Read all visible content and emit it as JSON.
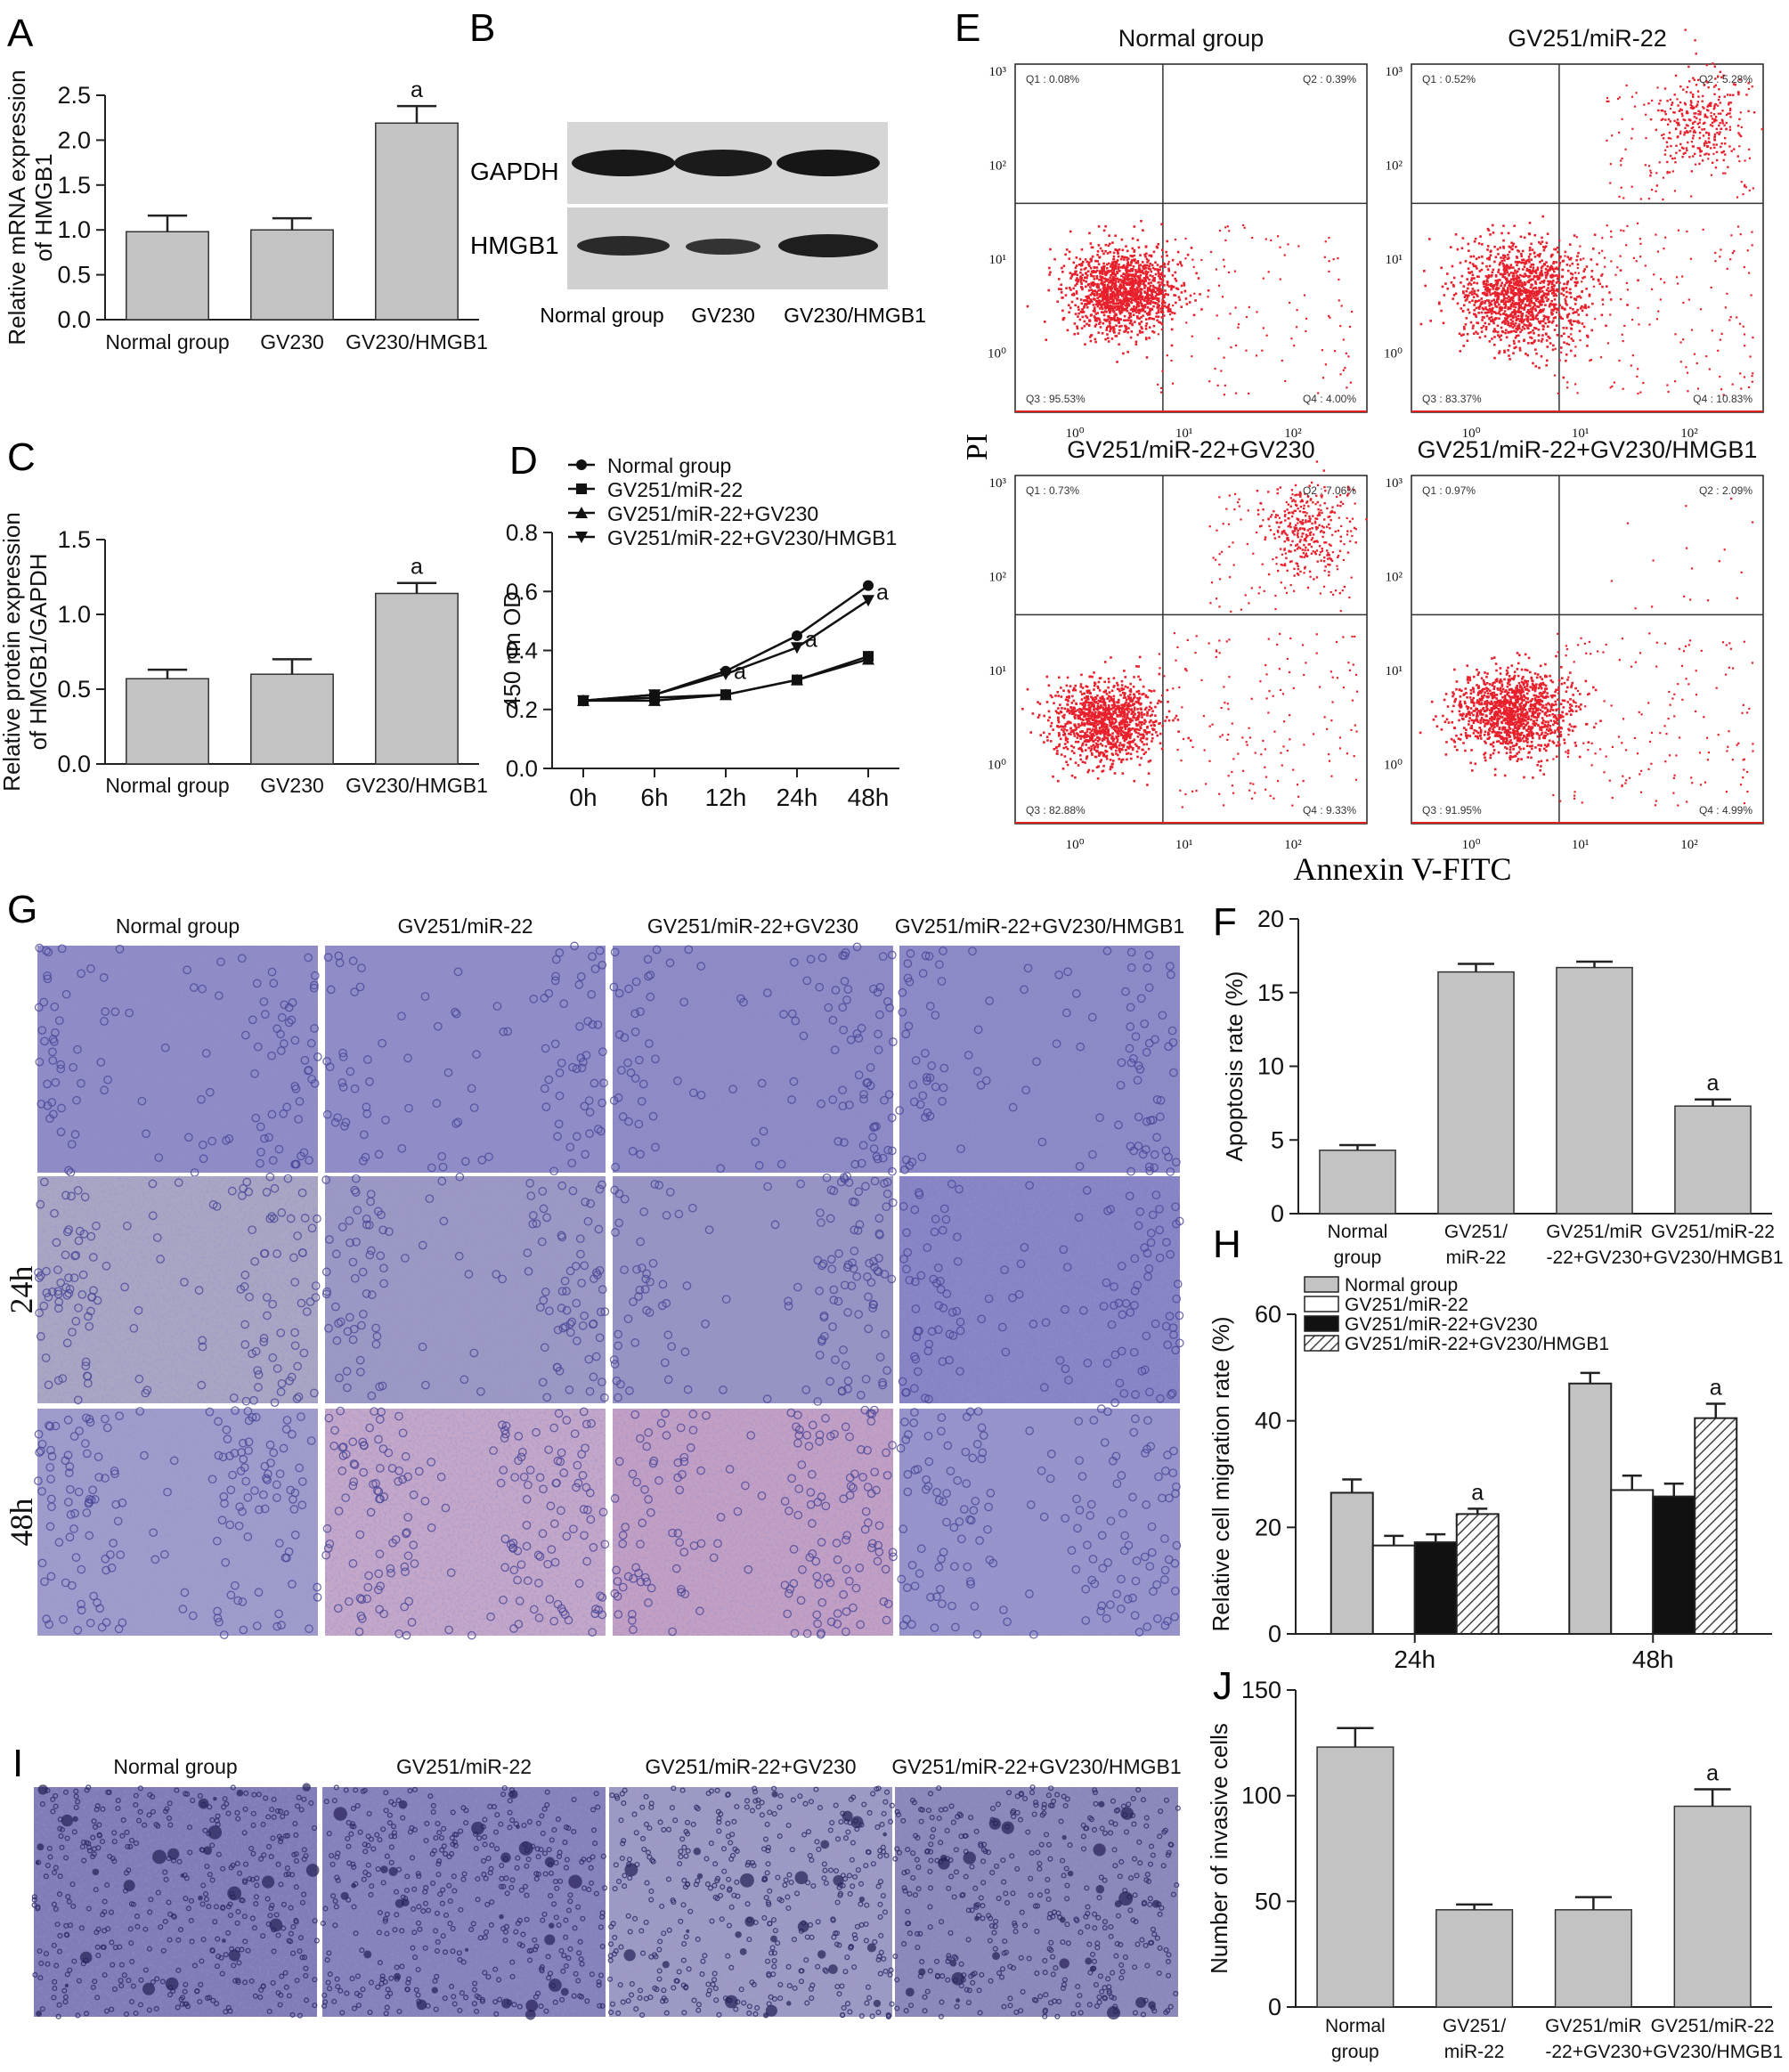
{
  "panel_letters": {
    "A": "A",
    "B": "B",
    "C": "C",
    "D": "D",
    "E": "E",
    "F": "F",
    "G": "G",
    "H": "H",
    "I": "I",
    "J": "J"
  },
  "sig_mark": "a",
  "colors": {
    "bar": "#c3c3c3",
    "axis": "#222222",
    "dot": "#e8202c",
    "micrograph": "#8f8cc4",
    "invasion": "#8b88b8"
  },
  "chart_data": [
    {
      "panel": "A",
      "type": "bar",
      "ylabel": "Relative mRNA expression of HMGB1",
      "categories": [
        "Normal group",
        "GV230",
        "GV230/HMGB1"
      ],
      "values": [
        0.98,
        1.0,
        2.19
      ],
      "errors": [
        0.18,
        0.13,
        0.19
      ],
      "significant": [
        false,
        false,
        true
      ],
      "ylim": [
        0,
        2.5
      ],
      "yticks": [
        "0.0",
        "0.5",
        "1.0",
        "1.5",
        "2.0",
        "2.5"
      ]
    },
    {
      "panel": "C",
      "type": "bar",
      "ylabel": "Relative protein expression of HMGB1/GAPDH",
      "categories": [
        "Normal group",
        "GV230",
        "GV230/HMGB1"
      ],
      "values": [
        0.57,
        0.6,
        1.14
      ],
      "errors": [
        0.06,
        0.1,
        0.07
      ],
      "significant": [
        false,
        false,
        true
      ],
      "ylim": [
        0,
        1.5
      ],
      "yticks": [
        "0.0",
        "0.5",
        "1.0",
        "1.5"
      ]
    },
    {
      "panel": "D",
      "type": "line",
      "ylabel": "450 nm OD",
      "categories": [
        "0h",
        "6h",
        "12h",
        "24h",
        "48h"
      ],
      "ylim": [
        0,
        0.8
      ],
      "yticks": [
        "0.0",
        "0.2",
        "0.4",
        "0.6",
        "0.8"
      ],
      "series": [
        {
          "name": "Normal group",
          "marker": "circle",
          "values": [
            0.23,
            0.25,
            0.33,
            0.45,
            0.62
          ]
        },
        {
          "name": "GV251/miR-22",
          "marker": "square",
          "values": [
            0.23,
            0.24,
            0.25,
            0.3,
            0.38
          ]
        },
        {
          "name": "GV251/miR-22+GV230",
          "marker": "triangle-up",
          "values": [
            0.23,
            0.23,
            0.25,
            0.3,
            0.37
          ]
        },
        {
          "name": "GV251/miR-22+GV230/HMGB1",
          "marker": "triangle-down",
          "values": [
            0.23,
            0.25,
            0.32,
            0.41,
            0.57
          ]
        }
      ],
      "significant_labels": [
        {
          "category": "12h",
          "value": 0.33
        },
        {
          "category": "24h",
          "value": 0.44
        },
        {
          "category": "48h",
          "value": 0.6
        }
      ]
    },
    {
      "panel": "F",
      "type": "bar",
      "ylabel": "Apoptosis rate (%)",
      "categories": [
        [
          "Normal",
          "group"
        ],
        [
          "GV251/",
          "miR-22"
        ],
        [
          "GV251/miR",
          "-22+GV230"
        ],
        [
          "GV251/miR-22",
          "+GV230/HMGB1"
        ]
      ],
      "values": [
        4.3,
        16.4,
        16.7,
        7.3
      ],
      "errors": [
        0.35,
        0.55,
        0.4,
        0.45
      ],
      "significant": [
        false,
        false,
        false,
        true
      ],
      "ylim": [
        0,
        20
      ],
      "yticks": [
        "0",
        "5",
        "10",
        "15",
        "20"
      ]
    },
    {
      "panel": "H",
      "type": "bar",
      "ylabel": "Relative cell migration rate (%)",
      "categories": [
        "24h",
        "48h"
      ],
      "series": [
        {
          "name": "Normal group",
          "fill": "gray",
          "values": [
            26.5,
            47
          ],
          "errors": [
            2.5,
            2
          ]
        },
        {
          "name": "GV251/miR-22",
          "fill": "white",
          "values": [
            16.6,
            27
          ],
          "errors": [
            1.8,
            2.7
          ]
        },
        {
          "name": "GV251/miR-22+GV230",
          "fill": "black",
          "values": [
            17.2,
            25.8
          ],
          "errors": [
            1.5,
            2.4
          ]
        },
        {
          "name": "GV251/miR-22+GV230/HMGB1",
          "fill": "hatched",
          "values": [
            22.5,
            40.5
          ],
          "errors": [
            1,
            2.7
          ]
        }
      ],
      "significant_series": "GV251/miR-22+GV230/HMGB1",
      "ylim": [
        0,
        60
      ],
      "yticks": [
        "0",
        "20",
        "40",
        "60"
      ]
    },
    {
      "panel": "J",
      "type": "bar",
      "ylabel": "Number of invasive cells",
      "categories": [
        [
          "Normal",
          "group"
        ],
        [
          "GV251/",
          "miR-22"
        ],
        [
          "GV251/miR",
          "-22+GV230"
        ],
        [
          "GV251/miR-22",
          "+GV230/HMGB1"
        ]
      ],
      "values": [
        123,
        46,
        46,
        95
      ],
      "errors": [
        9,
        2.5,
        6,
        8
      ],
      "significant": [
        false,
        false,
        false,
        true
      ],
      "ylim": [
        0,
        150
      ],
      "yticks": [
        "0",
        "50",
        "100",
        "150"
      ]
    }
  ],
  "blot_panel": {
    "bands": [
      "GAPDH",
      "HMGB1"
    ],
    "lanes": [
      "Normal group",
      "GV230",
      "GV230/HMGB1"
    ]
  },
  "flow_panel": {
    "x_axis_label": "Annexin V-FITC",
    "y_axis_label": "PI",
    "tick_labels": [
      "10⁰",
      "10¹",
      "10²",
      "10³"
    ],
    "plots": [
      {
        "title": "Normal group",
        "q1": "Q1 : 0.08%",
        "q2": "Q2 : 0.39%",
        "q3": "Q3 : 95.53%",
        "q4": "Q4 : 4.00%"
      },
      {
        "title": "GV251/miR-22",
        "q1": "Q1 : 0.52%",
        "q2": "Q2 : 5.28%",
        "q3": "Q3 : 83.37%",
        "q4": "Q4 : 10.83%"
      },
      {
        "title": "GV251/miR-22+GV230",
        "q1": "Q1 : 0.73%",
        "q2": "Q2 : 7.06%",
        "q3": "Q3 : 82.88%",
        "q4": "Q4 : 9.33%"
      },
      {
        "title": "GV251/miR-22+GV230/HMGB1",
        "q1": "Q1 : 0.97%",
        "q2": "Q2 : 2.09%",
        "q3": "Q3 : 91.95%",
        "q4": "Q4 : 4.99%"
      }
    ]
  },
  "wound_panel": {
    "columns": [
      "Normal group",
      "GV251/miR-22",
      "GV251/miR-22+GV230",
      "GV251/miR-22+GV230/HMGB1"
    ],
    "rows": [
      "",
      "24h",
      "48h"
    ]
  },
  "invasion_panel": {
    "columns": [
      "Normal group",
      "GV251/miR-22",
      "GV251/miR-22+GV230",
      "GV251/miR-22+GV230/HMGB1"
    ]
  }
}
